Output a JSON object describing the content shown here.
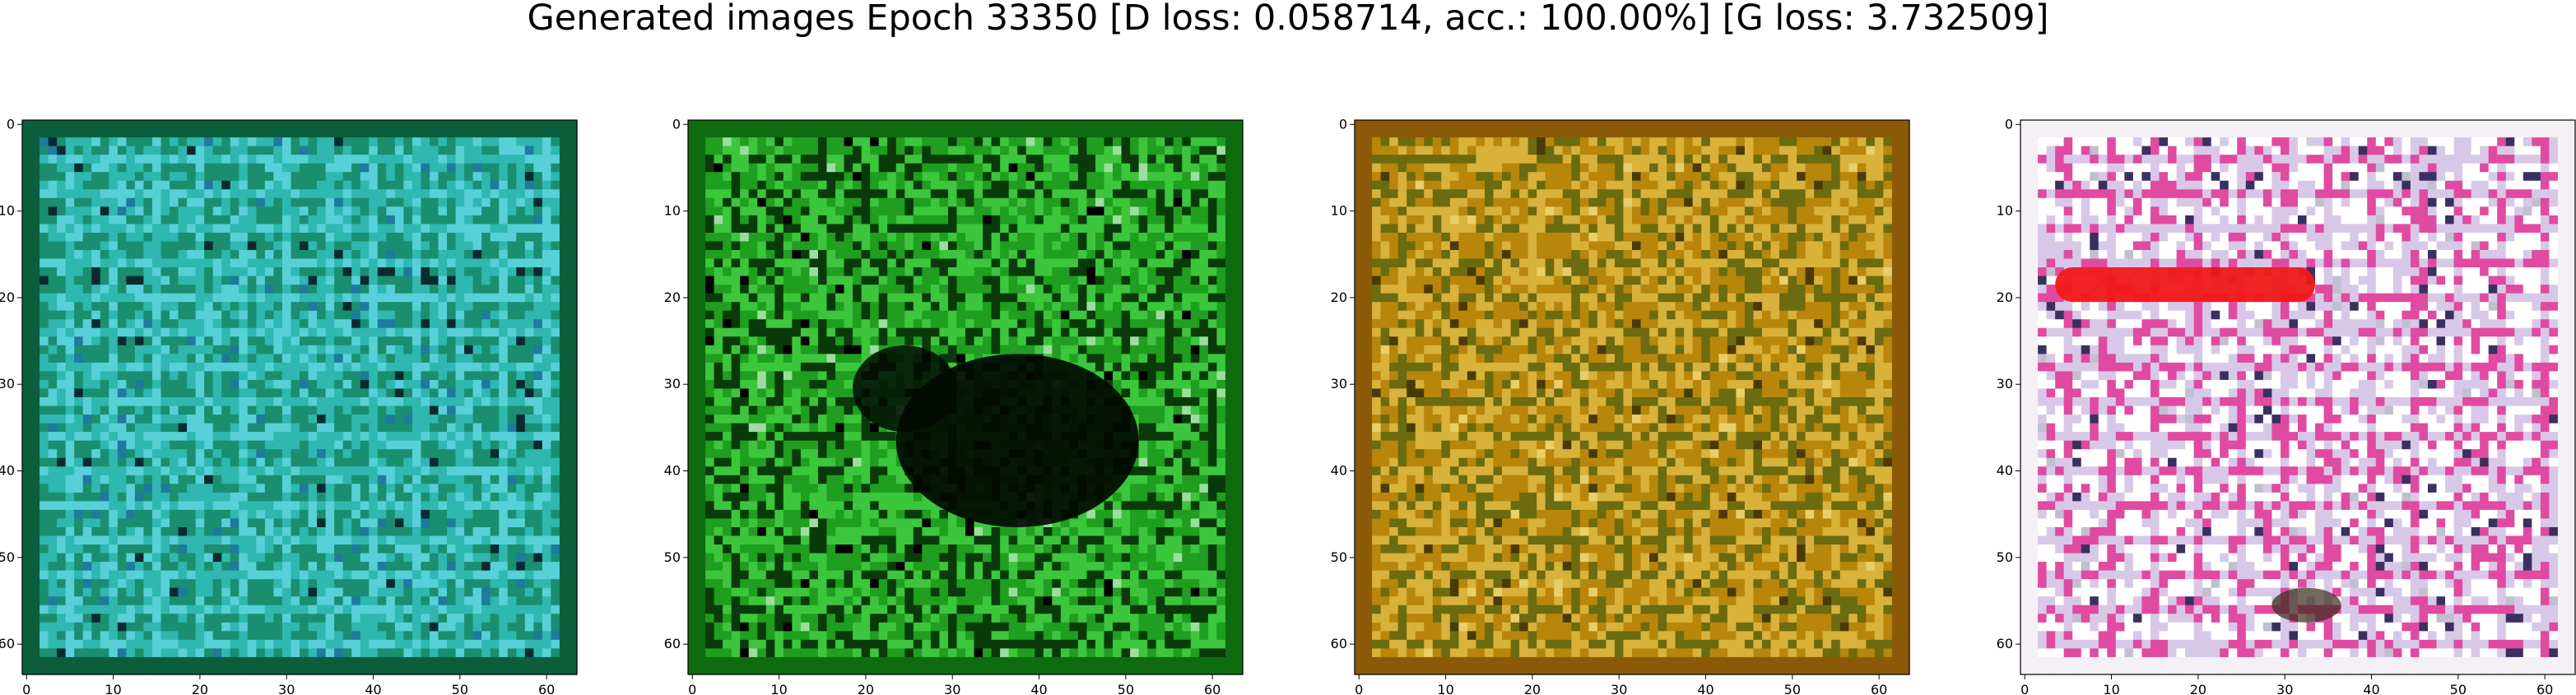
{
  "figure": {
    "title": "Generated images Epoch 33350 [D loss: 0.058714, acc.: 100.00%] [G loss: 3.732509]"
  },
  "axes": {
    "xticks": [
      "0",
      "10",
      "20",
      "30",
      "40",
      "50",
      "60"
    ],
    "yticks": [
      "0",
      "10",
      "20",
      "30",
      "40",
      "50",
      "60"
    ]
  },
  "panels": [
    {
      "name": "generated-image-1",
      "palette": [
        "#0b5e3c",
        "#1a8f6f",
        "#2fb7b0",
        "#57d0d8",
        "#1e7a9e",
        "#0a2a30"
      ]
    },
    {
      "name": "generated-image-2",
      "palette": [
        "#0f6b10",
        "#1f9e1f",
        "#3cc63c",
        "#0a3a0a",
        "#000000",
        "#9fdc9f"
      ]
    },
    {
      "name": "generated-image-3",
      "palette": [
        "#8a5a08",
        "#b8860b",
        "#d8b23a",
        "#6b6b10",
        "#4a3a08",
        "#e8cf6a"
      ]
    },
    {
      "name": "generated-image-4",
      "palette": [
        "#f4f0f6",
        "#ffffff",
        "#d8c8e8",
        "#e04aa0",
        "#3a3060",
        "#c0c0d0"
      ]
    }
  ]
}
